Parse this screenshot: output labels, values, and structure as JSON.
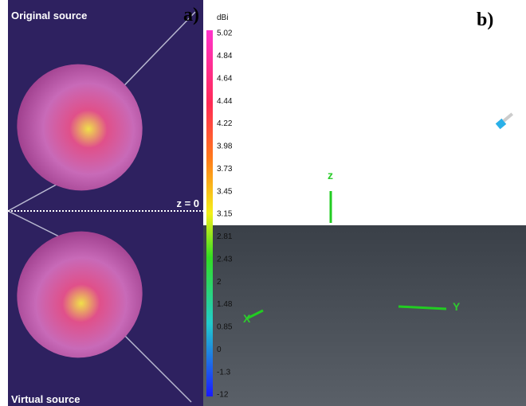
{
  "panel_a": {
    "label": "a)",
    "top_label": "Original source",
    "plane_label": "z = 0",
    "bottom_label": "Virtual source"
  },
  "panel_b": {
    "label": "b)",
    "colorbar": {
      "unit": "dBi",
      "ticks": [
        5.02,
        4.84,
        4.64,
        4.44,
        4.22,
        3.98,
        3.73,
        3.45,
        3.15,
        2.81,
        2.43,
        2,
        1.48,
        0.85,
        0,
        -1.3,
        -12
      ]
    },
    "axes": {
      "z": "z",
      "x": "X",
      "y": "Y"
    }
  }
}
